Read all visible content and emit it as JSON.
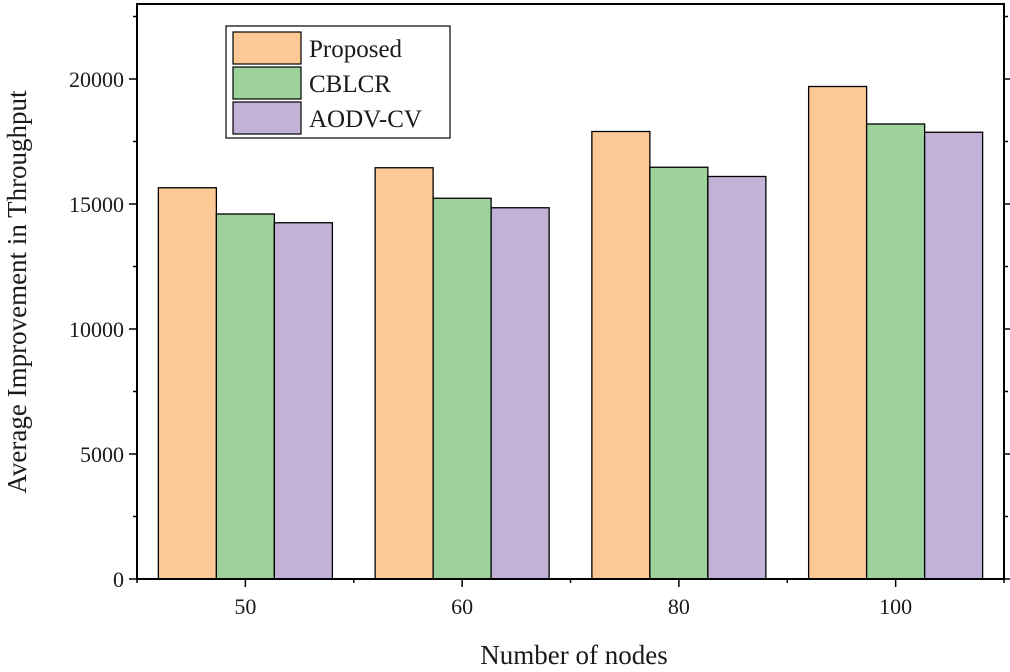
{
  "chart_data": {
    "type": "bar",
    "title": "",
    "xlabel": "Number of nodes",
    "ylabel": "Average Improvement in Throughput",
    "categories": [
      "50",
      "60",
      "80",
      "100"
    ],
    "series": [
      {
        "name": "Proposed",
        "color": "#fcc996",
        "values": [
          15650,
          16450,
          17900,
          19700
        ]
      },
      {
        "name": "CBLCR",
        "color": "#9dd39a",
        "values": [
          14600,
          15230,
          16470,
          18200
        ]
      },
      {
        "name": "AODV-CV",
        "color": "#c2b2d8",
        "values": [
          14250,
          14850,
          16100,
          17870
        ]
      }
    ],
    "ylim": [
      0,
      23000
    ],
    "yticks": [
      0,
      5000,
      10000,
      15000,
      20000
    ],
    "grid": false,
    "legend_position": "top-left"
  }
}
